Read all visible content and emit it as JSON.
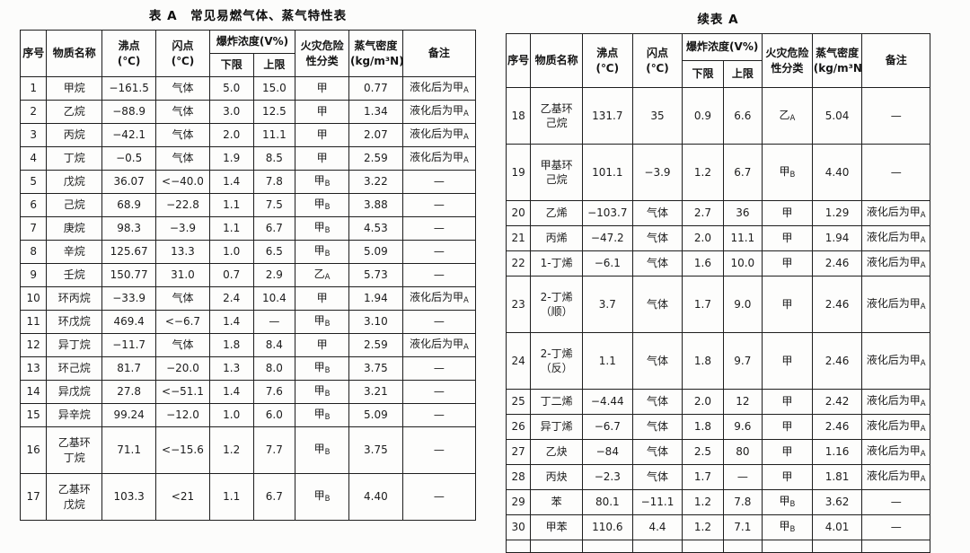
{
  "headers": {
    "no": "序号",
    "substance": "物质名称",
    "boiling": "沸点\n(℃)",
    "flash": "闪点\n(℃)",
    "explosion": "爆炸浓度(V%)",
    "lower": "下限",
    "upper": "上限",
    "hazard": "火灾危险\n性分类",
    "density": "蒸气密度\n(kg/m³N)",
    "remark": "备注"
  },
  "left_table": {
    "title": "表 A　常见易燃气体、蒸气特性表",
    "rows": [
      [
        "1",
        "甲烷",
        "−161.5",
        "气体",
        "5.0",
        "15.0",
        "甲",
        "0.77",
        "液化后为甲A"
      ],
      [
        "2",
        "乙烷",
        "−88.9",
        "气体",
        "3.0",
        "12.5",
        "甲",
        "1.34",
        "液化后为甲A"
      ],
      [
        "3",
        "丙烷",
        "−42.1",
        "气体",
        "2.0",
        "11.1",
        "甲",
        "2.07",
        "液化后为甲A"
      ],
      [
        "4",
        "丁烷",
        "−0.5",
        "气体",
        "1.9",
        "8.5",
        "甲",
        "2.59",
        "液化后为甲A"
      ],
      [
        "5",
        "戊烷",
        "36.07",
        "<−40.0",
        "1.4",
        "7.8",
        "甲B",
        "3.22",
        "—"
      ],
      [
        "6",
        "己烷",
        "68.9",
        "−22.8",
        "1.1",
        "7.5",
        "甲B",
        "3.88",
        "—"
      ],
      [
        "7",
        "庚烷",
        "98.3",
        "−3.9",
        "1.1",
        "6.7",
        "甲B",
        "4.53",
        "—"
      ],
      [
        "8",
        "辛烷",
        "125.67",
        "13.3",
        "1.0",
        "6.5",
        "甲B",
        "5.09",
        "—"
      ],
      [
        "9",
        "壬烷",
        "150.77",
        "31.0",
        "0.7",
        "2.9",
        "乙A",
        "5.73",
        "—"
      ],
      [
        "10",
        "环丙烷",
        "−33.9",
        "气体",
        "2.4",
        "10.4",
        "甲",
        "1.94",
        "液化后为甲A"
      ],
      [
        "11",
        "环戊烷",
        "469.4",
        "<−6.7",
        "1.4",
        "—",
        "甲B",
        "3.10",
        "—"
      ],
      [
        "12",
        "异丁烷",
        "−11.7",
        "气体",
        "1.8",
        "8.4",
        "甲",
        "2.59",
        "液化后为甲A"
      ],
      [
        "13",
        "环己烷",
        "81.7",
        "−20.0",
        "1.3",
        "8.0",
        "甲B",
        "3.75",
        "—"
      ],
      [
        "14",
        "异戊烷",
        "27.8",
        "<−51.1",
        "1.4",
        "7.6",
        "甲B",
        "3.21",
        "—"
      ],
      [
        "15",
        "异辛烷",
        "99.24",
        "−12.0",
        "1.0",
        "6.0",
        "甲B",
        "5.09",
        "—"
      ],
      [
        "16",
        "乙基环\n丁烷",
        "71.1",
        "<−15.6",
        "1.2",
        "7.7",
        "甲B",
        "3.75",
        "—"
      ],
      [
        "17",
        "乙基环\n戊烷",
        "103.3",
        "<21",
        "1.1",
        "6.7",
        "甲B",
        "4.40",
        "—"
      ]
    ]
  },
  "right_table": {
    "title": "续表 A",
    "rows": [
      [
        "18",
        "乙基环\n己烷",
        "131.7",
        "35",
        "0.9",
        "6.6",
        "乙A",
        "5.04",
        "—"
      ],
      [
        "19",
        "甲基环\n己烷",
        "101.1",
        "−3.9",
        "1.2",
        "6.7",
        "甲B",
        "4.40",
        "—"
      ],
      [
        "20",
        "乙烯",
        "−103.7",
        "气体",
        "2.7",
        "36",
        "甲",
        "1.29",
        "液化后为甲A"
      ],
      [
        "21",
        "丙烯",
        "−47.2",
        "气体",
        "2.0",
        "11.1",
        "甲",
        "1.94",
        "液化后为甲A"
      ],
      [
        "22",
        "1-丁烯",
        "−6.1",
        "气体",
        "1.6",
        "10.0",
        "甲",
        "2.46",
        "液化后为甲A"
      ],
      [
        "23",
        "2-丁烯\n（顺）",
        "3.7",
        "气体",
        "1.7",
        "9.0",
        "甲",
        "2.46",
        "液化后为甲A"
      ],
      [
        "24",
        "2-丁烯\n（反）",
        "1.1",
        "气体",
        "1.8",
        "9.7",
        "甲",
        "2.46",
        "液化后为甲A"
      ],
      [
        "25",
        "丁二烯",
        "−4.44",
        "气体",
        "2.0",
        "12",
        "甲",
        "2.42",
        "液化后为甲A"
      ],
      [
        "26",
        "异丁烯",
        "−6.7",
        "气体",
        "1.8",
        "9.6",
        "甲",
        "2.46",
        "液化后为甲A"
      ],
      [
        "27",
        "乙炔",
        "−84",
        "气体",
        "2.5",
        "80",
        "甲",
        "1.16",
        "液化后为甲A"
      ],
      [
        "28",
        "丙炔",
        "−2.3",
        "气体",
        "1.7",
        "—",
        "甲",
        "1.81",
        "液化后为甲A"
      ],
      [
        "29",
        "苯",
        "80.1",
        "−11.1",
        "1.2",
        "7.8",
        "甲B",
        "3.62",
        "—"
      ],
      [
        "30",
        "甲苯",
        "110.6",
        "4.4",
        "1.2",
        "7.1",
        "甲B",
        "4.01",
        "—"
      ]
    ]
  }
}
